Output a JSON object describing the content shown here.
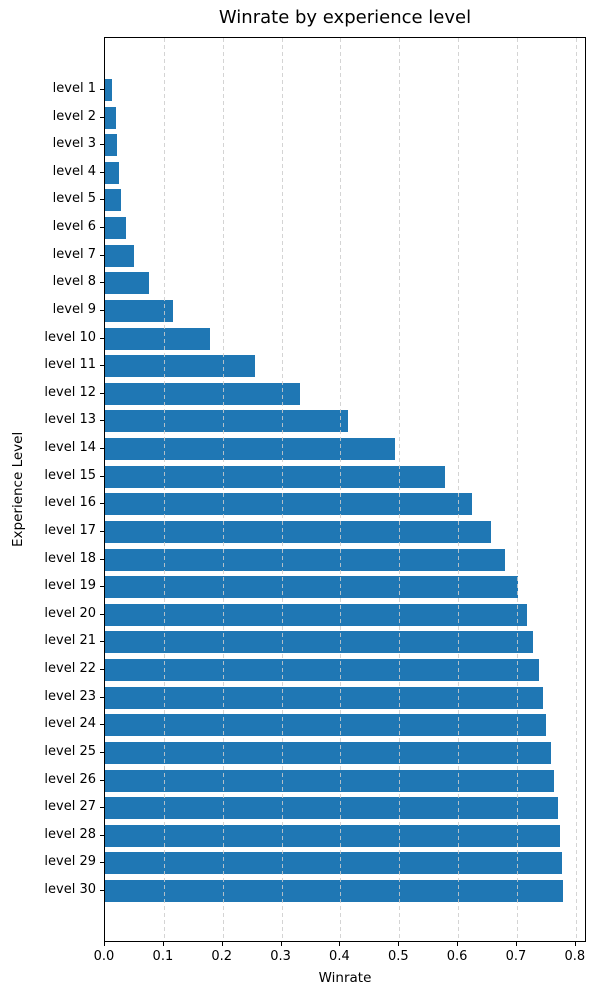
{
  "chart_data": {
    "type": "bar",
    "orientation": "horizontal",
    "title": "Winrate by experience level",
    "xlabel": "Winrate",
    "ylabel": "Experience Level",
    "categories": [
      "level 1",
      "level 2",
      "level 3",
      "level 4",
      "level 5",
      "level 6",
      "level 7",
      "level 8",
      "level 9",
      "level 10",
      "level 11",
      "level 12",
      "level 13",
      "level 14",
      "level 15",
      "level 16",
      "level 17",
      "level 18",
      "level 19",
      "level 20",
      "level 21",
      "level 22",
      "level 23",
      "level 24",
      "level 25",
      "level 26",
      "level 27",
      "level 28",
      "level 29",
      "level 30"
    ],
    "values": [
      0.011,
      0.019,
      0.021,
      0.023,
      0.027,
      0.035,
      0.05,
      0.075,
      0.116,
      0.179,
      0.255,
      0.332,
      0.413,
      0.493,
      0.577,
      0.624,
      0.655,
      0.68,
      0.701,
      0.717,
      0.728,
      0.737,
      0.744,
      0.75,
      0.757,
      0.763,
      0.769,
      0.773,
      0.776,
      0.778
    ],
    "xlim": [
      0,
      0.819
    ],
    "xticks": [
      0.0,
      0.1,
      0.2,
      0.3,
      0.4,
      0.5,
      0.6,
      0.7,
      0.8
    ],
    "xtick_labels": [
      "0.0",
      "0.1",
      "0.2",
      "0.3",
      "0.4",
      "0.5",
      "0.6",
      "0.7",
      "0.8"
    ],
    "grid": "vertical-dashed-over-bars",
    "legend": "none",
    "bar_color": "#1f77b4",
    "grid_color": "#cccccc",
    "spine_color": "#000000"
  }
}
